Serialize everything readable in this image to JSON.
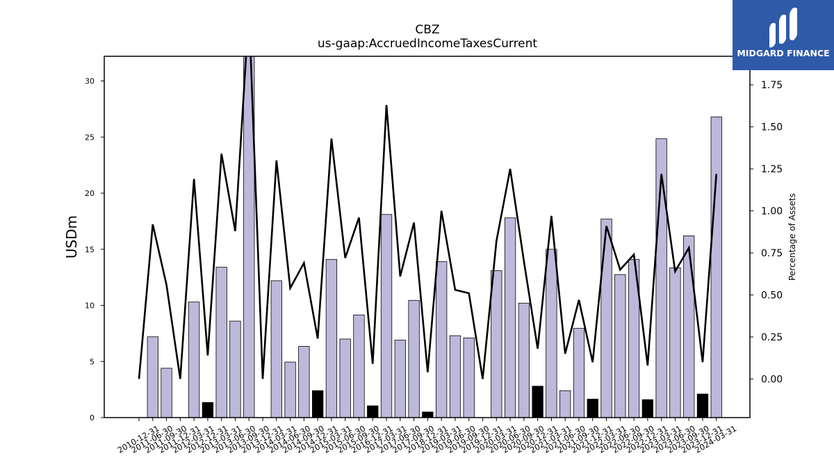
{
  "chart_data": {
    "type": "bar",
    "title": "CBZ",
    "subtitle": "us-gaap:AccruedIncomeTaxesCurrent",
    "ylabel": "USDm",
    "y2label": "Percentage of Assets",
    "ylim": [
      0,
      32.2
    ],
    "y2lim": [
      -0.23,
      1.92
    ],
    "yticks": [
      0,
      5,
      10,
      15,
      20,
      25,
      30
    ],
    "y2ticks": [
      "0.00",
      "0.25",
      "0.50",
      "0.75",
      "1.00",
      "1.25",
      "1.50",
      "1.75"
    ],
    "categories": [
      "2010-12-31",
      "2011-06-30",
      "2011-09-30",
      "2011-12-31",
      "2012-03-31",
      "2012-12-31",
      "2013-03-31",
      "2013-06-30",
      "2013-09-30",
      "2013-12-31",
      "2014-03-31",
      "2014-06-30",
      "2014-09-30",
      "2014-12-31",
      "2015-03-31",
      "2015-06-30",
      "2015-09-30",
      "2016-12-31",
      "2017-03-31",
      "2017-06-30",
      "2017-09-30",
      "2018-12-31",
      "2019-03-31",
      "2019-06-30",
      "2019-09-30",
      "2019-12-31",
      "2020-03-31",
      "2020-06-30",
      "2020-09-30",
      "2020-12-31",
      "2021-03-31",
      "2021-06-30",
      "2021-09-30",
      "2021-12-31",
      "2022-03-31",
      "2022-06-30",
      "2022-09-30",
      "2022-12-31",
      "2023-03-31",
      "2023-06-30",
      "2023-09-30",
      "2023-12-31",
      "2024-03-31"
    ],
    "series": [
      {
        "kind": "bar",
        "unit": "USDm",
        "values": [
          0,
          7.2,
          4.4,
          0,
          10.3,
          1.35,
          13.4,
          8.6,
          32.5,
          0,
          12.2,
          4.95,
          6.35,
          2.4,
          14.1,
          7.0,
          9.15,
          1.05,
          18.1,
          6.9,
          10.45,
          0.5,
          13.9,
          7.3,
          7.1,
          0,
          13.1,
          17.8,
          10.2,
          2.8,
          15.0,
          2.4,
          7.95,
          1.65,
          17.7,
          12.75,
          14.1,
          1.6,
          24.85,
          13.35,
          16.2,
          2.1,
          26.8
        ],
        "colors": [
          "#bcb9db",
          "#bcb9db",
          "#bcb9db",
          "#bcb9db",
          "#bcb9db",
          "#000000",
          "#bcb9db",
          "#bcb9db",
          "#bcb9db",
          "#bcb9db",
          "#bcb9db",
          "#bcb9db",
          "#bcb9db",
          "#000000",
          "#bcb9db",
          "#bcb9db",
          "#bcb9db",
          "#000000",
          "#bcb9db",
          "#bcb9db",
          "#bcb9db",
          "#000000",
          "#bcb9db",
          "#bcb9db",
          "#bcb9db",
          "#bcb9db",
          "#bcb9db",
          "#bcb9db",
          "#bcb9db",
          "#000000",
          "#bcb9db",
          "#bcb9db",
          "#bcb9db",
          "#000000",
          "#bcb9db",
          "#bcb9db",
          "#bcb9db",
          "#000000",
          "#bcb9db",
          "#bcb9db",
          "#bcb9db",
          "#000000",
          "#bcb9db"
        ]
      },
      {
        "kind": "line",
        "axis": "right",
        "unit": "Percentage of Assets",
        "color": "#000000",
        "values": [
          0.0,
          0.92,
          0.56,
          0.0,
          1.19,
          0.14,
          1.34,
          0.88,
          2.2,
          0.0,
          1.3,
          0.54,
          0.69,
          0.24,
          1.43,
          0.72,
          0.96,
          0.09,
          1.63,
          0.61,
          0.93,
          0.04,
          1.0,
          0.53,
          0.51,
          0.0,
          0.82,
          1.25,
          0.7,
          0.18,
          0.97,
          0.15,
          0.47,
          0.1,
          0.91,
          0.65,
          0.74,
          0.08,
          1.22,
          0.64,
          0.78,
          0.1,
          1.22
        ]
      }
    ],
    "grid": false,
    "legend": "none"
  },
  "brand": {
    "name": "MIDGARD FINANCE",
    "bg": "#2f5aa8"
  }
}
